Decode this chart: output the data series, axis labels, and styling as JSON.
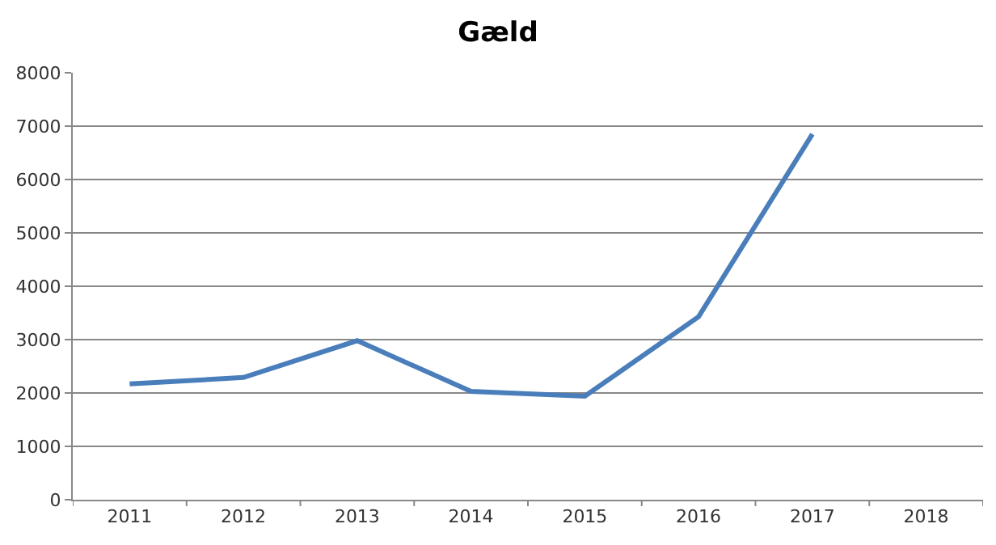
{
  "chart_data": {
    "type": "line",
    "title": "Gæld",
    "categories": [
      "2011",
      "2012",
      "2013",
      "2014",
      "2015",
      "2016",
      "2017",
      "2018"
    ],
    "series": [
      {
        "color": "#4a7ebb",
        "values": [
          2170,
          2290,
          2980,
          2030,
          1940,
          3430,
          6850,
          null
        ]
      }
    ],
    "ylim": [
      0,
      8000
    ],
    "yticks": [
      0,
      1000,
      2000,
      3000,
      4000,
      5000,
      6000,
      7000,
      8000
    ],
    "grid": "y",
    "marker": "none",
    "line_style": "solid"
  }
}
